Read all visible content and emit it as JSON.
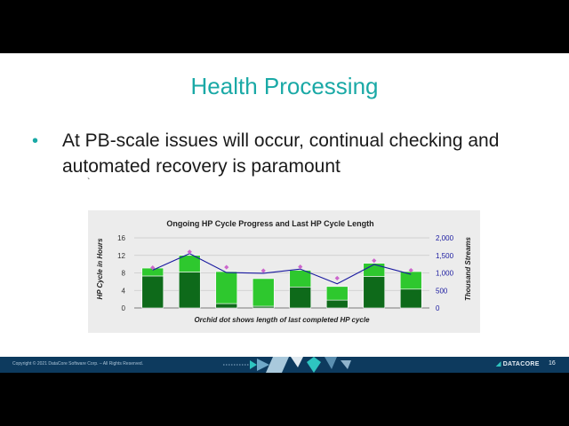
{
  "slide": {
    "title": "Health Processing",
    "bullet": "At PB-scale issues will occur, continual checking and automated recovery is paramount",
    "stray_mark": "`"
  },
  "footer": {
    "copyright": "Copyright © 2021 DataCore Software Corp. – All Rights Reserved.",
    "logo": "DATACORE",
    "page_number": "16"
  },
  "colors": {
    "title": "#1aa9a6",
    "footer_bg": "#0d3a5e",
    "bar_dark": "#0e6a1a",
    "bar_light": "#2ec82e",
    "line": "#1a1aa0",
    "dot": "#cc66cc"
  },
  "chart_data": {
    "type": "bar",
    "title": "Ongoing HP Cycle Progress and Last HP Cycle Length",
    "ylabel": "HP Cycle in Hours",
    "y2label": "Thousand Streams",
    "annotation": "Orchid dot shows length of last completed HP cycle",
    "ylim": [
      0,
      16
    ],
    "y2lim": [
      0,
      2000
    ],
    "yticks": [
      "0",
      "4",
      "8",
      "12",
      "16"
    ],
    "y2ticks": [
      "0",
      "500",
      "1,000",
      "1,500",
      "2,000"
    ],
    "stacked_series": [
      {
        "values": [
          7.3,
          8.2,
          1.0,
          0.4,
          4.8,
          1.8,
          7.2,
          4.3
        ]
      },
      {
        "values": [
          1.8,
          3.8,
          7.3,
          6.3,
          3.8,
          3.1,
          3.0,
          4.0
        ]
      }
    ],
    "last_cycle_hours": [
      9.2,
      12.8,
      9.3,
      8.5,
      9.4,
      6.8,
      10.8,
      8.6
    ],
    "streams_thousands": [
      1080,
      1550,
      1010,
      990,
      1110,
      690,
      1240,
      960
    ],
    "grid": true
  }
}
